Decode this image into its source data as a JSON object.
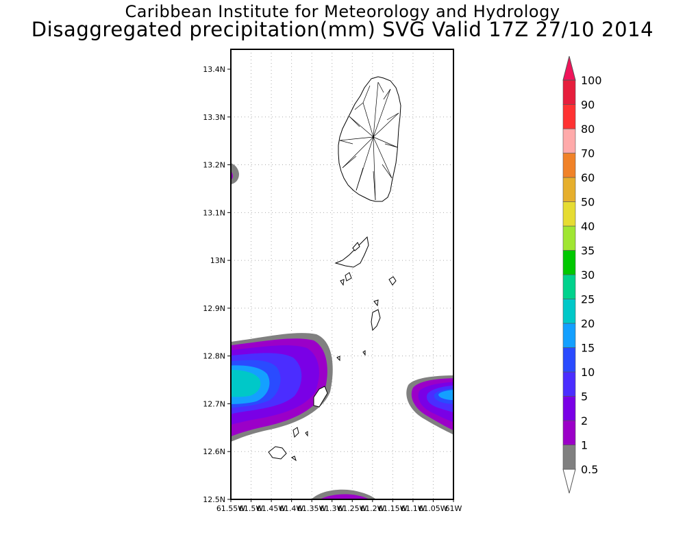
{
  "header": {
    "institute": "Caribbean Institute for Meteorology and Hydrology",
    "product": "Disaggregated precipitation(mm) SVG Valid 17Z 27/10 2014"
  },
  "map": {
    "lat_labels": [
      "13.4N",
      "13.3N",
      "13.2N",
      "13.1N",
      "13N",
      "12.9N",
      "12.8N",
      "12.7N",
      "12.6N",
      "12.5N"
    ],
    "lon_labels": [
      "61.55W",
      "61.5W",
      "61.45W",
      "61.4W",
      "61.35W",
      "61.3W",
      "61.25W",
      "61.2W",
      "61.15W",
      "61.1W",
      "61.05W",
      "61W"
    ],
    "lat_range": [
      12.5,
      13.44
    ],
    "lon_range": [
      -61.55,
      -61.0
    ],
    "grid": true
  },
  "colorbar": {
    "levels": [
      "0.5",
      "1",
      "2",
      "5",
      "10",
      "15",
      "20",
      "25",
      "30",
      "35",
      "40",
      "50",
      "60",
      "70",
      "80",
      "90",
      "100"
    ],
    "colors": [
      "#808080",
      "#9b00c8",
      "#7a00e6",
      "#4b2dff",
      "#2a4bff",
      "#14a0ff",
      "#00c8c8",
      "#00d28c",
      "#00c800",
      "#a0e632",
      "#e6dc32",
      "#e6af2d",
      "#f08228",
      "#ffaaaa",
      "#ff3232",
      "#e61e3c",
      "#f0145a"
    ]
  }
}
